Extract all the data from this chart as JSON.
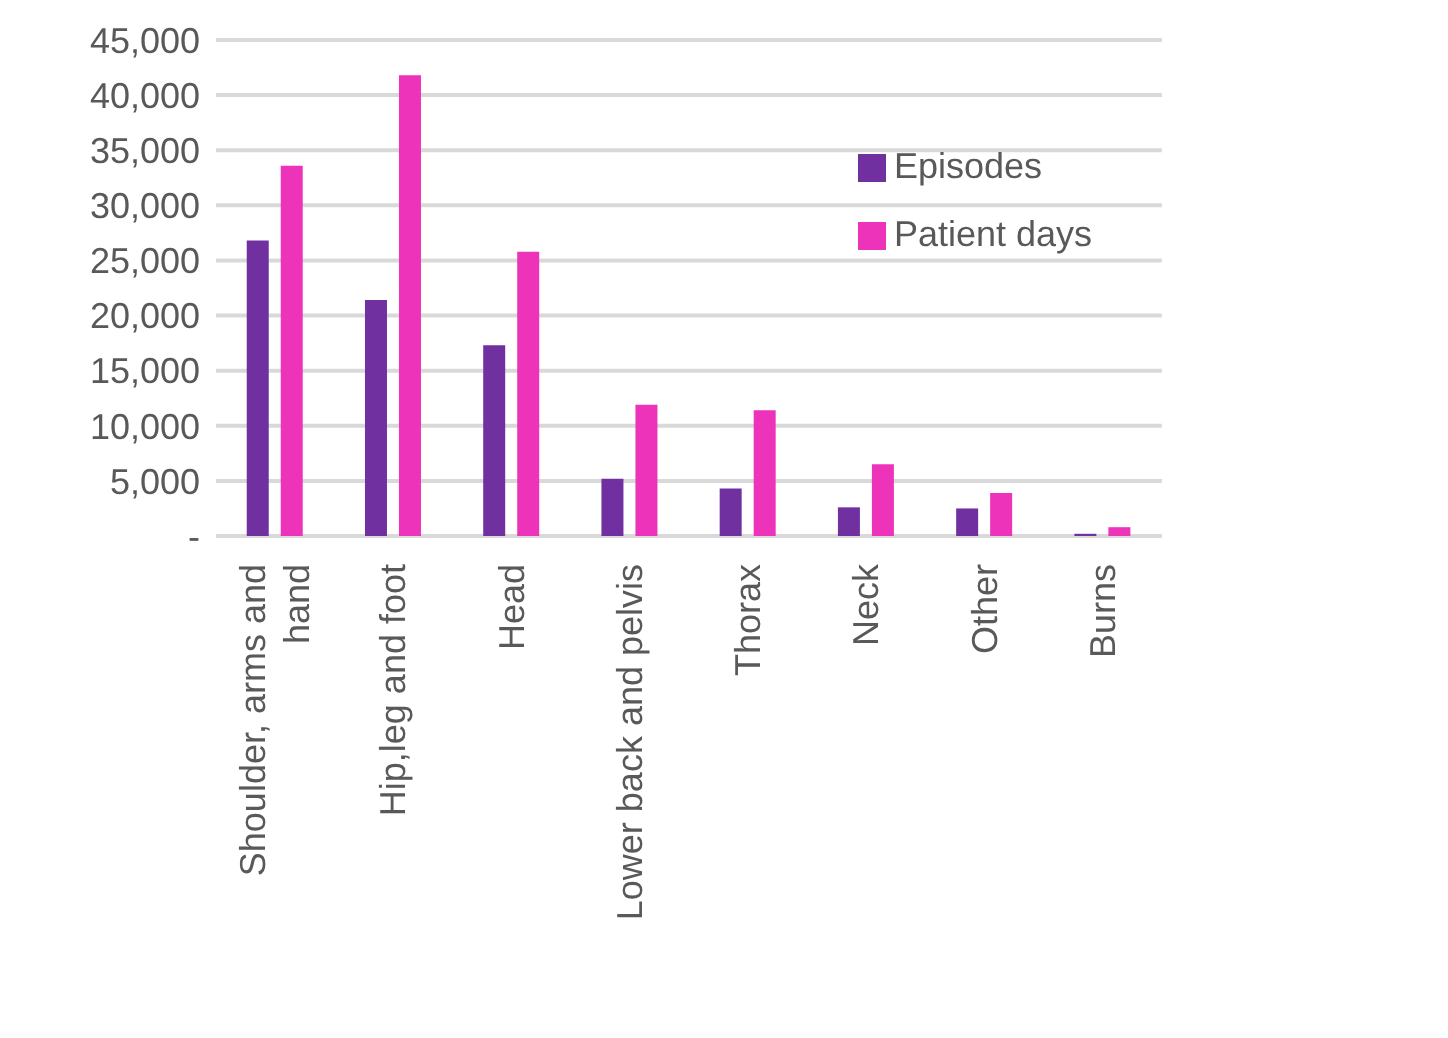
{
  "chart_data": {
    "type": "bar",
    "categories": [
      "Shoulder, arms and hand",
      "Hip,leg and foot",
      "Head",
      "Lower back and pelvis",
      "Thorax",
      "Neck",
      "Other",
      "Burns"
    ],
    "series": [
      {
        "name": "Episodes",
        "color": "#7030a0",
        "values": [
          26800,
          21400,
          17300,
          5200,
          4300,
          2600,
          2500,
          200
        ]
      },
      {
        "name": "Patient days",
        "color": "#ee33bb",
        "values": [
          33600,
          41800,
          25800,
          11900,
          11400,
          6500,
          3900,
          800
        ]
      }
    ],
    "ylim": [
      0,
      45000
    ],
    "yticks": [
      {
        "value": 0,
        "label": "-"
      },
      {
        "value": 5000,
        "label": "5,000"
      },
      {
        "value": 10000,
        "label": "10,000"
      },
      {
        "value": 15000,
        "label": "15,000"
      },
      {
        "value": 20000,
        "label": "20,000"
      },
      {
        "value": 25000,
        "label": "25,000"
      },
      {
        "value": 30000,
        "label": "30,000"
      },
      {
        "value": 35000,
        "label": "35,000"
      },
      {
        "value": 40000,
        "label": "40,000"
      },
      {
        "value": 45000,
        "label": "45,000"
      }
    ],
    "grid": "y",
    "legend": "top right"
  }
}
